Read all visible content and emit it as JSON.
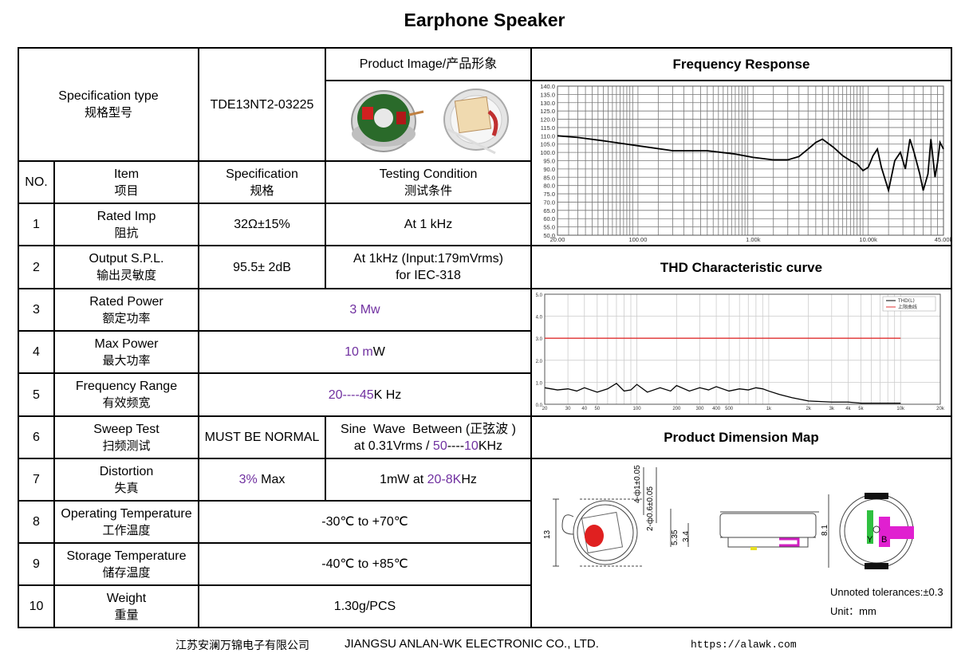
{
  "title": "Earphone Speaker",
  "header": {
    "spec_type_en": "Specification type",
    "spec_type_zh": "规格型号",
    "model": "TDE13NT2-03225",
    "product_image": "Product Image/产品形象",
    "freq_response_title": "Frequency    Response",
    "thd_title": "THD Characteristic curve",
    "dimension_title": "Product   Dimension   Map"
  },
  "columns": {
    "no": "NO.",
    "item_en": "Item",
    "item_zh": "项目",
    "spec_en": "Specification",
    "spec_zh": "规格",
    "cond_en": "Testing Condition",
    "cond_zh": "测试条件"
  },
  "rows": [
    {
      "no": "1",
      "en": "Rated Imp",
      "zh": "阻抗",
      "spec": "32Ω±15%",
      "cond": "At 1 kHz"
    },
    {
      "no": "2",
      "en": "Output S.P.L.",
      "zh": "输出灵敏度",
      "spec": "95.5± 2dB",
      "cond1": "At 1kHz (Input:179mVrms)",
      "cond2": "for IEC-318"
    },
    {
      "no": "3",
      "en": "Rated Power",
      "zh": "额定功率",
      "value": "3 Mw"
    },
    {
      "no": "4",
      "en": "Max Power",
      "zh": "最大功率",
      "value_a": "10 m",
      "value_b": "W"
    },
    {
      "no": "5",
      "en": "Frequency Range",
      "zh": "有效频宽",
      "value_a": "20",
      "value_b": "----",
      "value_c": "45",
      "value_d": "K Hz"
    },
    {
      "no": "6",
      "en": "Sweep Test",
      "zh": "扫频测试",
      "spec": "MUST BE NORMAL",
      "cond1": "Sine  Wave  Between (正弦波 )",
      "cond2a": "at 0.31Vrms / ",
      "cond2b": "50",
      "cond2c": "----",
      "cond2d": "10",
      "cond2e": "KHz"
    },
    {
      "no": "7",
      "en": "Distortion",
      "zh": "失真",
      "spec_a": "3%",
      "spec_b": " Max",
      "cond_a": "1mW at ",
      "cond_b": "20-8K",
      "cond_c": "Hz"
    },
    {
      "no": "8",
      "en": "Operating Temperature",
      "zh": "工作温度",
      "value": "-30℃ to +70℃"
    },
    {
      "no": "9",
      "en": "Storage Temperature",
      "zh": "储存温度",
      "value": "-40℃ to +85℃"
    },
    {
      "no": "10",
      "en": "Weight",
      "zh": "重量",
      "value": "1.30g/PCS"
    }
  ],
  "dimension": {
    "tolerance": "Unnoted tolerances:±0.3",
    "unit": "Unit：mm",
    "labels": [
      "4-ф1±0.05",
      "2-ф0.6±0.05",
      "13",
      "5.35",
      "3.4",
      "8.1",
      "Y",
      "B"
    ]
  },
  "footer": {
    "company_zh": "江苏安澜万锦电子有限公司",
    "company_en": "JIANGSU ANLAN-WK ELECTRONIC CO., LTD.",
    "url": "https://alawk.com"
  },
  "chart_data": [
    {
      "type": "line",
      "title": "",
      "x": [
        20,
        30,
        50,
        100,
        200,
        400,
        700,
        1000,
        1500,
        2000,
        2500,
        3000,
        3500,
        4000,
        5000,
        6000,
        7000,
        8000,
        9000,
        10000,
        11000,
        12000,
        13000,
        15000,
        17000,
        19000,
        21000,
        23000,
        25000,
        28000,
        30000,
        33000,
        35000,
        38000,
        40000,
        42000,
        45000
      ],
      "series": [
        {
          "values": [
            110,
            109,
            107,
            104,
            101,
            101,
            99,
            97,
            95.5,
            95.5,
            97.5,
            102,
            106,
            108,
            103,
            98,
            95,
            93,
            89,
            91,
            98,
            102,
            91,
            77,
            95,
            100,
            90,
            108,
            100,
            87,
            77,
            87,
            108,
            85,
            94,
            106,
            102
          ]
        }
      ],
      "xlim": [
        20,
        45000
      ],
      "ylim": [
        50,
        140
      ],
      "x_scale": "log",
      "yticks": [
        "50.0",
        "55.0",
        "60.0",
        "65.0",
        "70.0",
        "75.0",
        "80.0",
        "85.0",
        "90.0",
        "95.0",
        "100.0",
        "105.0",
        "110.0",
        "115.0",
        "120.0",
        "125.0",
        "130.0",
        "135.0",
        "140.0"
      ],
      "xticks": [
        "20.00",
        "100.00",
        "1.00k",
        "10.00k",
        "45.00k"
      ],
      "grid": true
    },
    {
      "type": "line",
      "title": "",
      "x": [
        20,
        25,
        30,
        35,
        40,
        50,
        60,
        70,
        80,
        90,
        100,
        120,
        150,
        180,
        200,
        250,
        300,
        350,
        400,
        500,
        600,
        700,
        800,
        900,
        1000,
        1200,
        1500,
        2000,
        3000,
        4000,
        5000,
        7000,
        10000
      ],
      "series": [
        {
          "name": "THD(L)",
          "values": [
            0.75,
            0.65,
            0.7,
            0.6,
            0.75,
            0.55,
            0.7,
            0.95,
            0.6,
            0.65,
            0.9,
            0.55,
            0.75,
            0.6,
            0.85,
            0.6,
            0.75,
            0.65,
            0.8,
            0.6,
            0.7,
            0.65,
            0.75,
            0.7,
            0.6,
            0.45,
            0.3,
            0.15,
            0.1,
            0.1,
            0.05,
            0.05,
            0.05
          ]
        },
        {
          "name": "上限曲线",
          "values": [
            3,
            3,
            3,
            3,
            3,
            3,
            3,
            3,
            3,
            3,
            3,
            3,
            3,
            3,
            3,
            3,
            3,
            3,
            3,
            3,
            3,
            3,
            3,
            3,
            3,
            3,
            3,
            3,
            3,
            3,
            3,
            3,
            3
          ]
        }
      ],
      "xlim": [
        20,
        20000
      ],
      "ylim": [
        0,
        5
      ],
      "x_scale": "log",
      "yticks": [
        "0.0",
        "1.0",
        "2.0",
        "3.0",
        "4.0",
        "5.0"
      ],
      "xticks": [
        "20",
        "30",
        "40",
        "50",
        "100",
        "200",
        "300",
        "400",
        "500",
        "1k",
        "2k",
        "3k",
        "4k",
        "5k",
        "10k",
        "20k"
      ],
      "grid": true,
      "colors": {
        "thd": "#000000",
        "limit": "#e03030"
      }
    }
  ]
}
